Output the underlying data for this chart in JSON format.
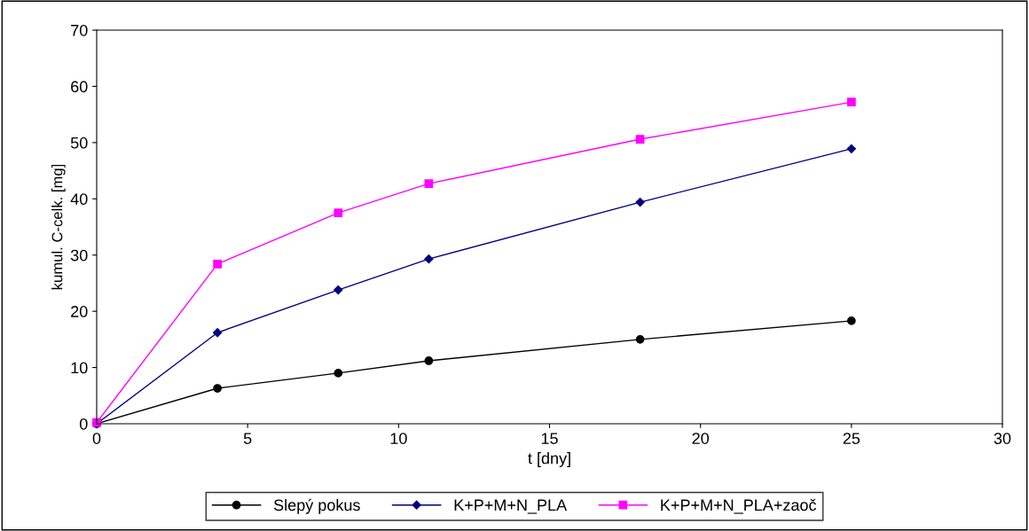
{
  "chart_data": {
    "type": "line",
    "xlabel": "t [dny]",
    "ylabel": "kumul. C-celk. [mg]",
    "x": [
      0,
      4,
      8,
      11,
      18,
      25
    ],
    "series": [
      {
        "name": "Slepý pokus",
        "color": "#000000",
        "marker": "circle",
        "values": [
          0,
          6.3,
          9.0,
          11.2,
          15.0,
          18.3
        ]
      },
      {
        "name": "K+P+M+N_PLA",
        "color": "#000080",
        "marker": "diamond",
        "values": [
          0,
          16.2,
          23.8,
          29.3,
          39.4,
          48.9
        ]
      },
      {
        "name": "K+P+M+N_PLA+zaoč",
        "color": "#ff00ff",
        "marker": "square",
        "values": [
          0.2,
          28.4,
          37.5,
          42.7,
          50.6,
          57.2
        ]
      }
    ],
    "xlim": [
      0,
      30
    ],
    "xticks": [
      0,
      5,
      10,
      15,
      20,
      25,
      30
    ],
    "ylim": [
      0,
      70
    ],
    "yticks": [
      0,
      10,
      20,
      30,
      40,
      50,
      60,
      70
    ],
    "grid": false,
    "legend": "bottom",
    "line_style": "solid"
  }
}
